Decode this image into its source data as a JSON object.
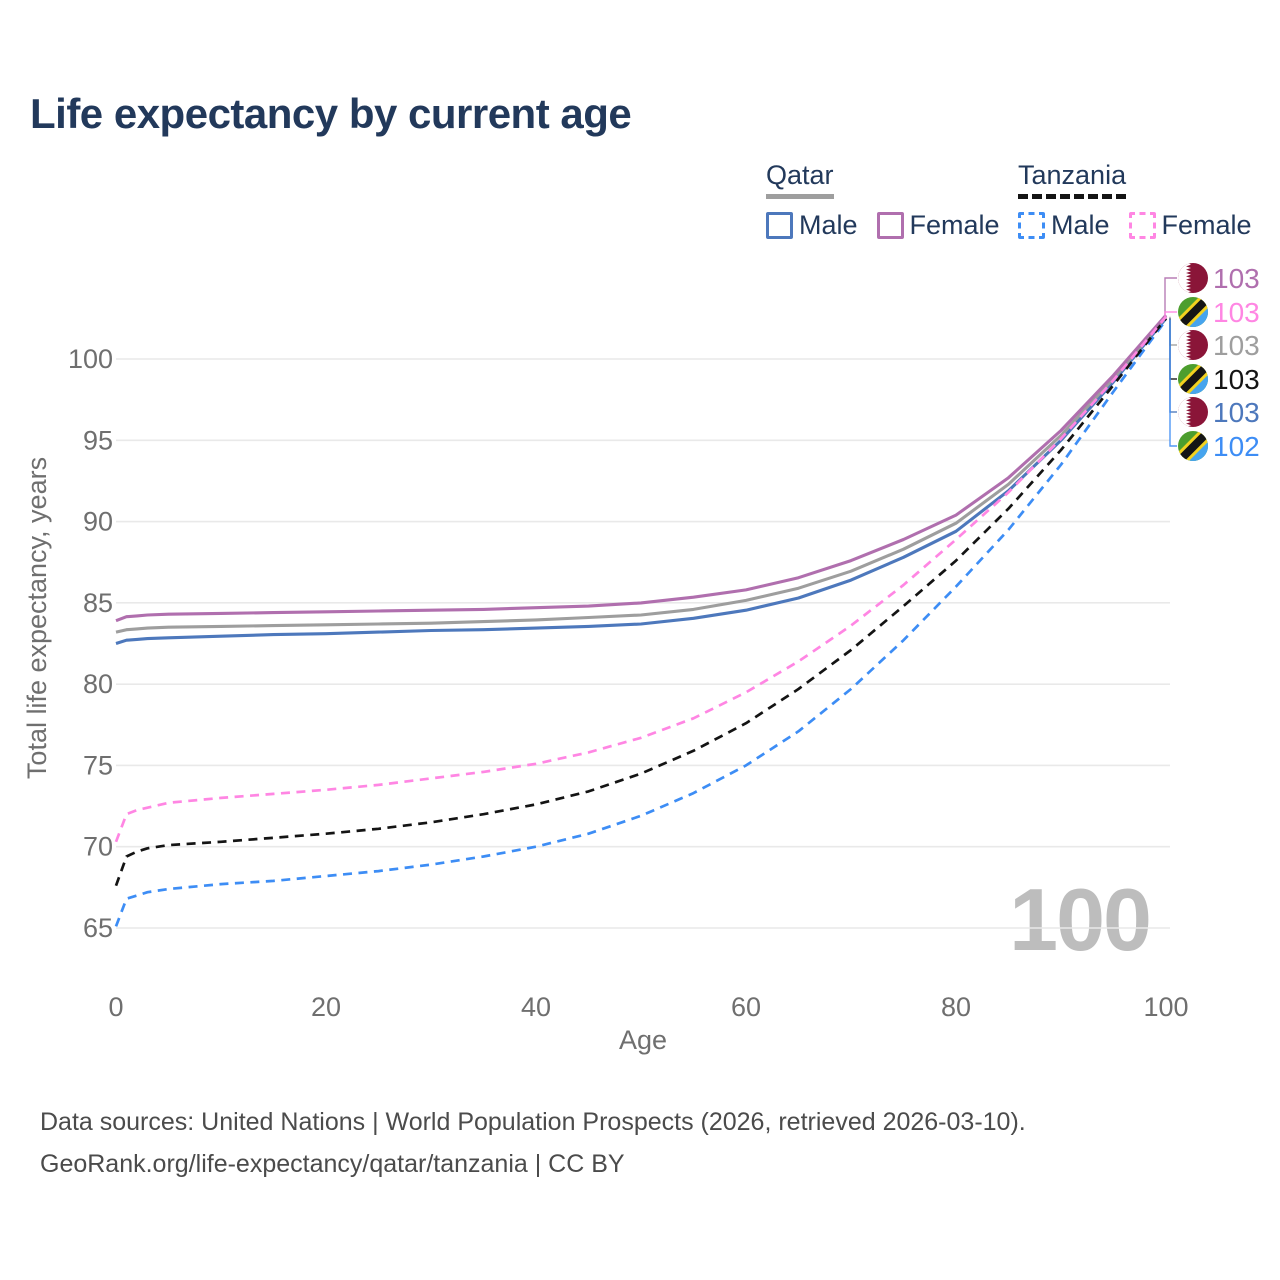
{
  "title": "Life expectancy by current age",
  "legend": {
    "groups": [
      {
        "label": "Qatar",
        "line_style": "solid",
        "items": [
          {
            "label": "Male"
          },
          {
            "label": "Female"
          }
        ]
      },
      {
        "label": "Tanzania",
        "line_style": "dashed",
        "items": [
          {
            "label": "Male"
          },
          {
            "label": "Female"
          }
        ]
      }
    ]
  },
  "colors": {
    "title_text": "#22395b",
    "axis_text": "#6f6f6f",
    "grid": "#e9e9e9",
    "footer_text": "#4b4b4b",
    "watermark": "#bdbdbd",
    "qatar_male": "#4d78bc",
    "qatar_total": "#9e9e9e",
    "qatar_female": "#b06fae",
    "tanzania_male": "#3d8df5",
    "tanzania_total": "#141414",
    "tanzania_female": "#ff86e3",
    "qatar_flag_maroon": "#8a1538",
    "tanzania_flag_green": "#4c9e2e",
    "tanzania_flag_blue": "#46a4ee",
    "tanzania_flag_yellow": "#f2d21f"
  },
  "watermark": "100",
  "chart_data": {
    "type": "line",
    "title": "Life expectancy by current age",
    "xlabel": "Age",
    "ylabel": "Total life expectancy, years",
    "xlim": [
      0,
      100
    ],
    "ylim": [
      63,
      104
    ],
    "x_ticks": [
      0,
      20,
      40,
      60,
      80,
      100
    ],
    "y_ticks": [
      65,
      70,
      75,
      80,
      85,
      90,
      95,
      100
    ],
    "grid": "horizontal",
    "legend_position": "top-right",
    "x": [
      0,
      1,
      2,
      3,
      5,
      10,
      15,
      20,
      25,
      30,
      35,
      40,
      45,
      50,
      55,
      60,
      65,
      70,
      75,
      80,
      85,
      90,
      95,
      100
    ],
    "series": [
      {
        "name": "Qatar Male",
        "country": "Qatar",
        "sex": "Male",
        "color": "#4d78bc",
        "dashed": false,
        "end_label": "103",
        "flag": "qatar-flag-icon",
        "values": [
          82.5,
          82.7,
          82.75,
          82.8,
          82.85,
          82.95,
          83.05,
          83.1,
          83.2,
          83.3,
          83.35,
          83.45,
          83.55,
          83.7,
          84.05,
          84.55,
          85.3,
          86.4,
          87.8,
          89.4,
          91.9,
          95.0,
          98.6,
          102.5
        ]
      },
      {
        "name": "Qatar Both sexes",
        "country": "Qatar",
        "sex": "Both",
        "color": "#9e9e9e",
        "dashed": false,
        "end_label": "103",
        "flag": "qatar-flag-icon",
        "values": [
          83.2,
          83.35,
          83.4,
          83.45,
          83.5,
          83.55,
          83.6,
          83.65,
          83.7,
          83.75,
          83.85,
          83.95,
          84.1,
          84.25,
          84.6,
          85.15,
          85.9,
          86.95,
          88.3,
          89.9,
          92.3,
          95.3,
          98.8,
          102.6
        ]
      },
      {
        "name": "Qatar Female",
        "country": "Qatar",
        "sex": "Female",
        "color": "#b06fae",
        "dashed": false,
        "end_label": "103",
        "flag": "qatar-flag-icon",
        "values": [
          83.9,
          84.15,
          84.2,
          84.25,
          84.3,
          84.35,
          84.4,
          84.45,
          84.5,
          84.55,
          84.6,
          84.7,
          84.8,
          85.0,
          85.35,
          85.8,
          86.55,
          87.6,
          88.9,
          90.4,
          92.7,
          95.6,
          99.0,
          102.7
        ]
      },
      {
        "name": "Tanzania Male",
        "country": "Tanzania",
        "sex": "Male",
        "color": "#3d8df5",
        "dashed": true,
        "end_label": "102",
        "flag": "tanzania-flag-icon",
        "values": [
          65.1,
          66.8,
          67.0,
          67.2,
          67.4,
          67.7,
          67.9,
          68.2,
          68.5,
          68.9,
          69.4,
          70.0,
          70.8,
          71.9,
          73.3,
          75.0,
          77.1,
          79.7,
          82.7,
          86.0,
          89.5,
          93.5,
          98.0,
          102.4
        ]
      },
      {
        "name": "Tanzania Both sexes",
        "country": "Tanzania",
        "sex": "Both",
        "color": "#141414",
        "dashed": true,
        "end_label": "103",
        "flag": "tanzania-flag-icon",
        "values": [
          67.6,
          69.4,
          69.7,
          69.9,
          70.1,
          70.3,
          70.55,
          70.8,
          71.1,
          71.5,
          72.0,
          72.6,
          73.4,
          74.5,
          75.9,
          77.6,
          79.7,
          82.1,
          84.8,
          87.6,
          90.8,
          94.4,
          98.4,
          102.5
        ]
      },
      {
        "name": "Tanzania Female",
        "country": "Tanzania",
        "sex": "Female",
        "color": "#ff86e3",
        "dashed": true,
        "end_label": "103",
        "flag": "tanzania-flag-icon",
        "values": [
          70.3,
          72.0,
          72.25,
          72.4,
          72.7,
          73.0,
          73.25,
          73.5,
          73.8,
          74.2,
          74.6,
          75.1,
          75.8,
          76.7,
          77.9,
          79.5,
          81.4,
          83.6,
          86.1,
          88.9,
          91.8,
          95.1,
          98.7,
          102.6
        ]
      }
    ],
    "end_label_order": [
      2,
      5,
      1,
      4,
      0,
      3
    ]
  },
  "footer": {
    "line1": "Data sources: United Nations | World Population Prospects (2026, retrieved 2026-03-10).",
    "line2": "GeoRank.org/life-expectancy/qatar/tanzania | CC BY"
  }
}
